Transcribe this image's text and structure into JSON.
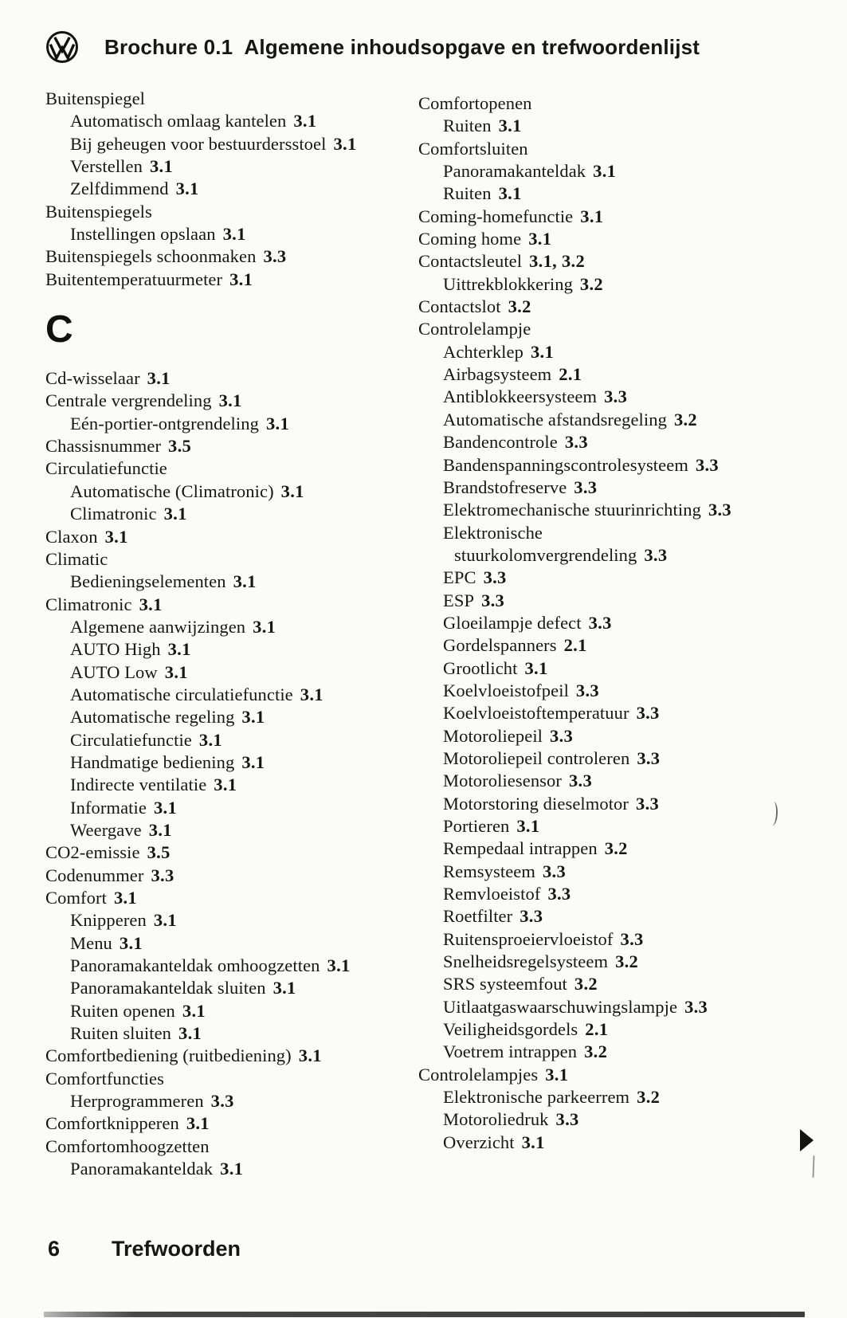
{
  "header": {
    "brand": "Brochure 0.1",
    "title": "Algemene inhoudsopgave en trefwoordenlijst"
  },
  "icons": {
    "logo": "vw-logo-icon",
    "continuation": "continuation-arrow-icon"
  },
  "colors": {
    "text": "#161616",
    "paper": "#fbfbf8",
    "bottom_bar": "#3d3d3d"
  },
  "index": {
    "left_column": [
      {
        "label": "Buitenspiegel",
        "page": "",
        "level": 0
      },
      {
        "label": "Automatisch omlaag kantelen",
        "page": "3.1",
        "level": 1
      },
      {
        "label": "Bij geheugen voor bestuurdersstoel",
        "page": "3.1",
        "level": 1
      },
      {
        "label": "Verstellen",
        "page": "3.1",
        "level": 1
      },
      {
        "label": "Zelfdimmend",
        "page": "3.1",
        "level": 1
      },
      {
        "label": "Buitenspiegels",
        "page": "",
        "level": 0
      },
      {
        "label": "Instellingen opslaan",
        "page": "3.1",
        "level": 1
      },
      {
        "label": "Buitenspiegels schoonmaken",
        "page": "3.3",
        "level": 0
      },
      {
        "label": "Buitentemperatuurmeter",
        "page": "3.1",
        "level": 0
      },
      {
        "type": "section",
        "label": "C"
      },
      {
        "label": "Cd-wisselaar",
        "page": "3.1",
        "level": 0
      },
      {
        "label": "Centrale vergrendeling",
        "page": "3.1",
        "level": 0
      },
      {
        "label": "Eén-portier-ontgrendeling",
        "page": "3.1",
        "level": 1
      },
      {
        "label": "Chassisnummer",
        "page": "3.5",
        "level": 0
      },
      {
        "label": "Circulatiefunctie",
        "page": "",
        "level": 0
      },
      {
        "label": "Automatische (Climatronic)",
        "page": "3.1",
        "level": 1
      },
      {
        "label": "Climatronic",
        "page": "3.1",
        "level": 1
      },
      {
        "label": "Claxon",
        "page": "3.1",
        "level": 0
      },
      {
        "label": "Climatic",
        "page": "",
        "level": 0
      },
      {
        "label": "Bedieningselementen",
        "page": "3.1",
        "level": 1
      },
      {
        "label": "Climatronic",
        "page": "3.1",
        "level": 0
      },
      {
        "label": "Algemene aanwijzingen",
        "page": "3.1",
        "level": 1
      },
      {
        "label": "AUTO High",
        "page": "3.1",
        "level": 1
      },
      {
        "label": "AUTO Low",
        "page": "3.1",
        "level": 1
      },
      {
        "label": "Automatische circulatiefunctie",
        "page": "3.1",
        "level": 1
      },
      {
        "label": "Automatische regeling",
        "page": "3.1",
        "level": 1
      },
      {
        "label": "Circulatiefunctie",
        "page": "3.1",
        "level": 1
      },
      {
        "label": "Handmatige bediening",
        "page": "3.1",
        "level": 1
      },
      {
        "label": "Indirecte ventilatie",
        "page": "3.1",
        "level": 1
      },
      {
        "label": "Informatie",
        "page": "3.1",
        "level": 1
      },
      {
        "label": "Weergave",
        "page": "3.1",
        "level": 1
      },
      {
        "label": "CO2-emissie",
        "page": "3.5",
        "level": 0
      },
      {
        "label": "Codenummer",
        "page": "3.3",
        "level": 0
      },
      {
        "label": "Comfort",
        "page": "3.1",
        "level": 0
      },
      {
        "label": "Knipperen",
        "page": "3.1",
        "level": 1
      },
      {
        "label": "Menu",
        "page": "3.1",
        "level": 1
      },
      {
        "label": "Panoramakanteldak omhoogzetten",
        "page": "3.1",
        "level": 1
      },
      {
        "label": "Panoramakanteldak sluiten",
        "page": "3.1",
        "level": 1
      },
      {
        "label": "Ruiten openen",
        "page": "3.1",
        "level": 1
      },
      {
        "label": "Ruiten sluiten",
        "page": "3.1",
        "level": 1
      },
      {
        "label": "Comfortbediening (ruitbediening)",
        "page": "3.1",
        "level": 0
      },
      {
        "label": "Comfortfuncties",
        "page": "",
        "level": 0
      },
      {
        "label": "Herprogrammeren",
        "page": "3.3",
        "level": 1
      },
      {
        "label": "Comfortknipperen",
        "page": "3.1",
        "level": 0
      },
      {
        "label": "Comfortomhoogzetten",
        "page": "",
        "level": 0
      },
      {
        "label": "Panoramakanteldak",
        "page": "3.1",
        "level": 1
      }
    ],
    "right_column": [
      {
        "label": "Comfortopenen",
        "page": "",
        "level": 0
      },
      {
        "label": "Ruiten",
        "page": "3.1",
        "level": 1
      },
      {
        "label": "Comfortsluiten",
        "page": "",
        "level": 0
      },
      {
        "label": "Panoramakanteldak",
        "page": "3.1",
        "level": 1
      },
      {
        "label": "Ruiten",
        "page": "3.1",
        "level": 1
      },
      {
        "label": "Coming-homefunctie",
        "page": "3.1",
        "level": 0
      },
      {
        "label": "Coming home",
        "page": "3.1",
        "level": 0
      },
      {
        "label": "Contactsleutel",
        "page": "3.1, 3.2",
        "level": 0
      },
      {
        "label": "Uittrekblokkering",
        "page": "3.2",
        "level": 1
      },
      {
        "label": "Contactslot",
        "page": "3.2",
        "level": 0
      },
      {
        "label": "Controlelampje",
        "page": "",
        "level": 0
      },
      {
        "label": "Achterklep",
        "page": "3.1",
        "level": 1
      },
      {
        "label": "Airbagsysteem",
        "page": "2.1",
        "level": 1
      },
      {
        "label": "Antiblokkeersysteem",
        "page": "3.3",
        "level": 1
      },
      {
        "label": "Automatische afstandsregeling",
        "page": "3.2",
        "level": 1
      },
      {
        "label": "Bandencontrole",
        "page": "3.3",
        "level": 1
      },
      {
        "label": "Bandenspanningscontrolesysteem",
        "page": "3.3",
        "level": 1
      },
      {
        "label": "Brandstofreserve",
        "page": "3.3",
        "level": 1
      },
      {
        "label": "Elektromechanische stuurinrichting",
        "page": "3.3",
        "level": 1
      },
      {
        "label": "Elektronische",
        "page": "",
        "level": 1
      },
      {
        "label": "stuurkolomvergrendeling",
        "page": "3.3",
        "level": 2
      },
      {
        "label": "EPC",
        "page": "3.3",
        "level": 1
      },
      {
        "label": "ESP",
        "page": "3.3",
        "level": 1
      },
      {
        "label": "Gloeilampje defect",
        "page": "3.3",
        "level": 1
      },
      {
        "label": "Gordelspanners",
        "page": "2.1",
        "level": 1
      },
      {
        "label": "Grootlicht",
        "page": "3.1",
        "level": 1
      },
      {
        "label": "Koelvloeistofpeil",
        "page": "3.3",
        "level": 1
      },
      {
        "label": "Koelvloeistoftemperatuur",
        "page": "3.3",
        "level": 1
      },
      {
        "label": "Motoroliepeil",
        "page": "3.3",
        "level": 1
      },
      {
        "label": "Motoroliepeil controleren",
        "page": "3.3",
        "level": 1
      },
      {
        "label": "Motoroliesensor",
        "page": "3.3",
        "level": 1
      },
      {
        "label": "Motorstoring dieselmotor",
        "page": "3.3",
        "level": 1
      },
      {
        "label": "Portieren",
        "page": "3.1",
        "level": 1
      },
      {
        "label": "Rempedaal intrappen",
        "page": "3.2",
        "level": 1
      },
      {
        "label": "Remsysteem",
        "page": "3.3",
        "level": 1
      },
      {
        "label": "Remvloeistof",
        "page": "3.3",
        "level": 1
      },
      {
        "label": "Roetfilter",
        "page": "3.3",
        "level": 1
      },
      {
        "label": "Ruitensproeiervloeistof",
        "page": "3.3",
        "level": 1
      },
      {
        "label": "Snelheidsregelsysteem",
        "page": "3.2",
        "level": 1
      },
      {
        "label": "SRS systeemfout",
        "page": "3.2",
        "level": 1
      },
      {
        "label": "Uitlaatgaswaarschuwingslampje",
        "page": "3.3",
        "level": 1
      },
      {
        "label": "Veiligheidsgordels",
        "page": "2.1",
        "level": 1
      },
      {
        "label": "Voetrem intrappen",
        "page": "3.2",
        "level": 1
      },
      {
        "label": "Controlelampjes",
        "page": "3.1",
        "level": 0
      },
      {
        "label": "Elektronische parkeerrem",
        "page": "3.2",
        "level": 1
      },
      {
        "label": "Motoroliedruk",
        "page": "3.3",
        "level": 1
      },
      {
        "label": "Overzicht",
        "page": "3.1",
        "level": 1
      }
    ]
  },
  "footer": {
    "page_number": "6",
    "label": "Trefwoorden"
  }
}
